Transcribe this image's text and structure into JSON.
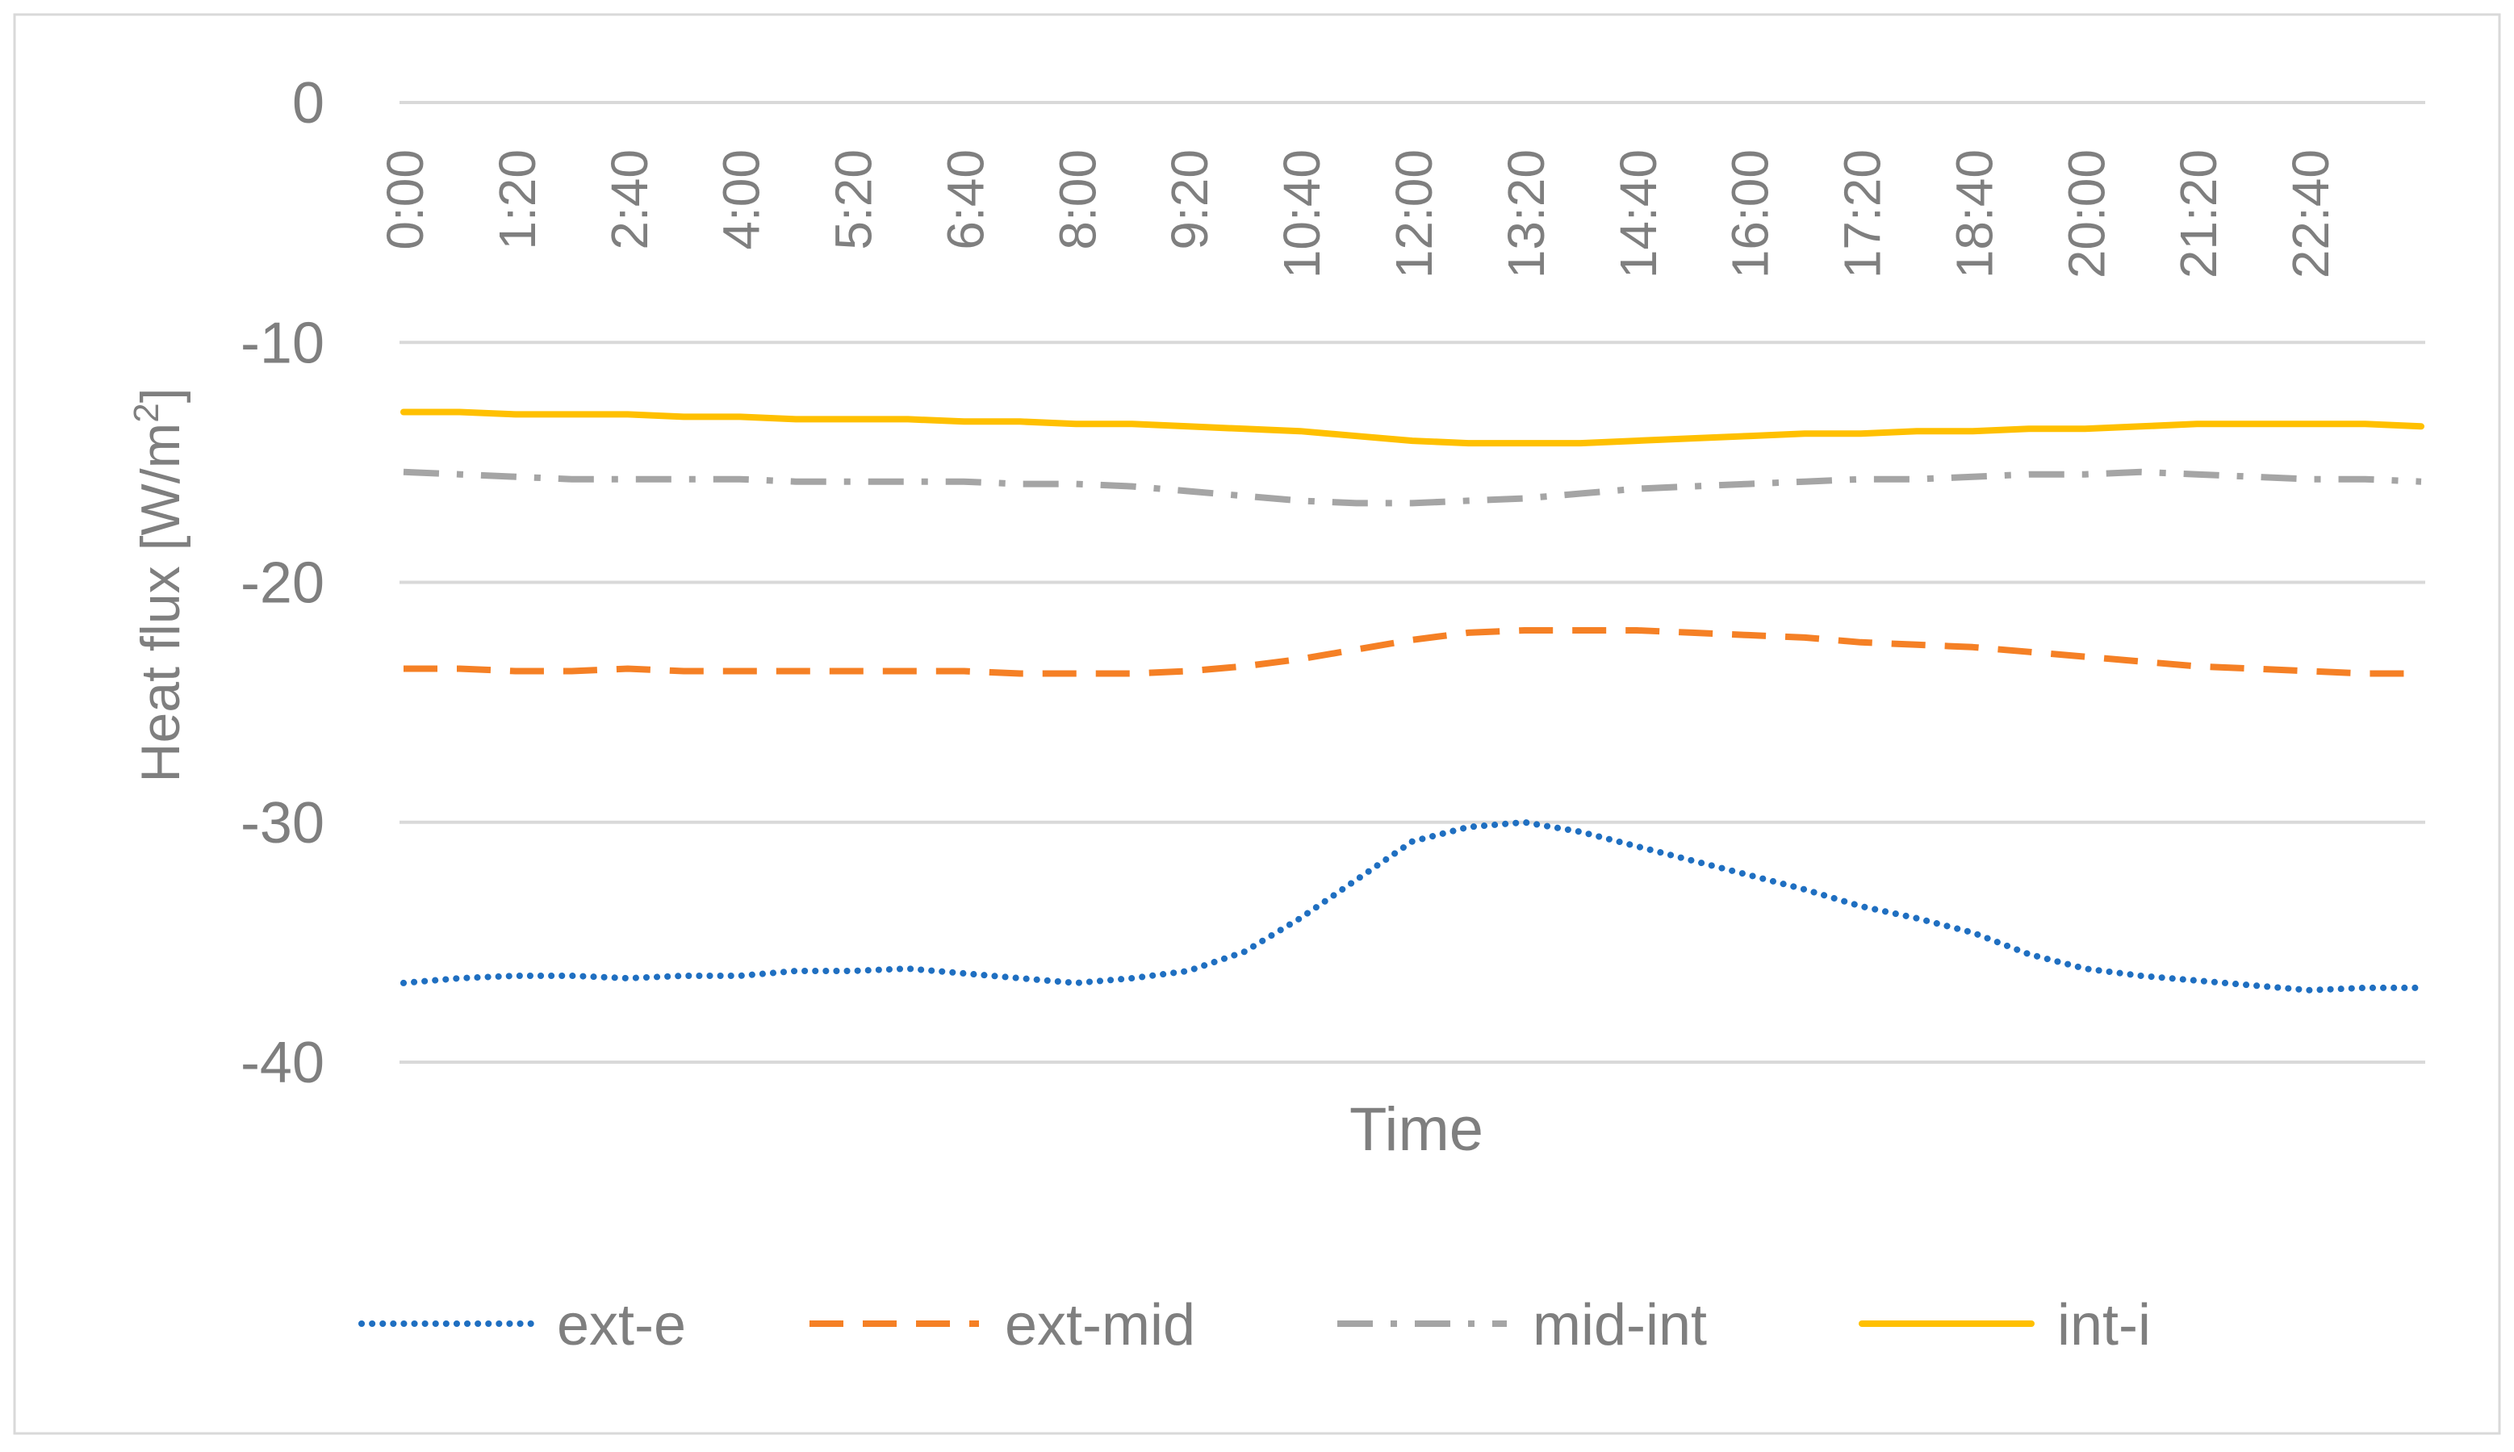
{
  "chart_data": {
    "type": "line",
    "title": "",
    "xlabel": "Time",
    "ylabel": "Heat flux [W/m",
    "ylabel_sup": "2",
    "ylabel_close": "]",
    "ylim": [
      -40,
      0
    ],
    "yticks": [
      0,
      -10,
      -20,
      -30,
      -40
    ],
    "grid": true,
    "legend_position": "bottom",
    "x_tick_labels": [
      "0:00",
      "1:20",
      "2:40",
      "4:00",
      "5:20",
      "6:40",
      "8:00",
      "9:20",
      "10:40",
      "12:00",
      "13:20",
      "14:40",
      "16:00",
      "17:20",
      "18:40",
      "20:00",
      "21:20",
      "22:40"
    ],
    "x_hours": [
      0,
      1,
      2,
      3,
      4,
      5,
      6,
      7,
      8,
      9,
      10,
      11,
      12,
      13,
      14,
      15,
      16,
      17,
      18,
      19,
      20,
      21,
      22,
      23,
      24,
      25,
      26,
      27,
      28,
      29,
      30,
      31,
      32,
      33,
      34,
      35,
      36
    ],
    "series": [
      {
        "name": "ext-e",
        "color": "#1f6fc1",
        "style": "dotted",
        "values": [
          -36.7,
          -36.5,
          -36.4,
          -36.4,
          -36.5,
          -36.4,
          -36.4,
          -36.2,
          -36.2,
          -36.1,
          -36.3,
          -36.5,
          -36.7,
          -36.5,
          -36.2,
          -35.4,
          -34.0,
          -32.4,
          -30.8,
          -30.2,
          -30.0,
          -30.4,
          -31.0,
          -31.6,
          -32.2,
          -32.8,
          -33.5,
          -34.0,
          -34.6,
          -35.5,
          -36.1,
          -36.4,
          -36.6,
          -36.8,
          -37.0,
          -36.9,
          -36.9
        ]
      },
      {
        "name": "ext-mid",
        "color": "#f58025",
        "style": "dashed",
        "values": [
          -23.6,
          -23.6,
          -23.7,
          -23.7,
          -23.6,
          -23.7,
          -23.7,
          -23.7,
          -23.7,
          -23.7,
          -23.7,
          -23.8,
          -23.8,
          -23.8,
          -23.7,
          -23.5,
          -23.2,
          -22.8,
          -22.4,
          -22.1,
          -22.0,
          -22.0,
          -22.0,
          -22.1,
          -22.2,
          -22.3,
          -22.5,
          -22.6,
          -22.7,
          -22.9,
          -23.1,
          -23.3,
          -23.5,
          -23.6,
          -23.7,
          -23.8,
          -23.8
        ]
      },
      {
        "name": "mid-int",
        "color": "#a5a5a5",
        "style": "dashdot",
        "values": [
          -15.4,
          -15.5,
          -15.6,
          -15.7,
          -15.7,
          -15.7,
          -15.7,
          -15.8,
          -15.8,
          -15.8,
          -15.8,
          -15.9,
          -15.9,
          -16.0,
          -16.2,
          -16.4,
          -16.6,
          -16.7,
          -16.7,
          -16.6,
          -16.5,
          -16.3,
          -16.1,
          -16.0,
          -15.9,
          -15.8,
          -15.7,
          -15.7,
          -15.6,
          -15.5,
          -15.5,
          -15.4,
          -15.5,
          -15.6,
          -15.7,
          -15.7,
          -15.8
        ]
      },
      {
        "name": "int-i",
        "color": "#ffc000",
        "style": "solid",
        "values": [
          -12.9,
          -12.9,
          -13.0,
          -13.0,
          -13.0,
          -13.1,
          -13.1,
          -13.2,
          -13.2,
          -13.2,
          -13.3,
          -13.3,
          -13.4,
          -13.4,
          -13.5,
          -13.6,
          -13.7,
          -13.9,
          -14.1,
          -14.2,
          -14.2,
          -14.2,
          -14.1,
          -14.0,
          -13.9,
          -13.8,
          -13.8,
          -13.7,
          -13.7,
          -13.6,
          -13.6,
          -13.5,
          -13.4,
          -13.4,
          -13.4,
          -13.4,
          -13.5
        ]
      }
    ]
  }
}
